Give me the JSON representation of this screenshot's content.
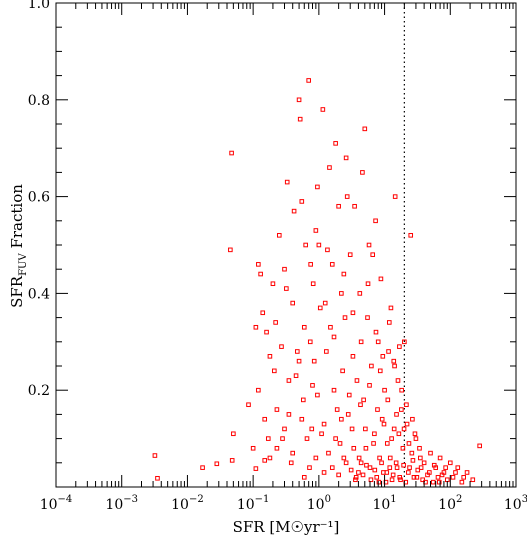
{
  "chart_data": {
    "type": "scatter",
    "title": "",
    "xlabel": "SFR [M☉yr⁻¹]",
    "ylabel": "SFRFUV Fraction",
    "xscale": "log",
    "xlim": [
      0.0001,
      1000
    ],
    "ylim": [
      0.0,
      1.0
    ],
    "x_ticks": [
      {
        "value": 0.0001,
        "base": "10",
        "exp": "−4"
      },
      {
        "value": 0.001,
        "base": "10",
        "exp": "−3"
      },
      {
        "value": 0.01,
        "base": "10",
        "exp": "−2"
      },
      {
        "value": 0.1,
        "base": "10",
        "exp": "−1"
      },
      {
        "value": 1,
        "base": "10",
        "exp": "0"
      },
      {
        "value": 10,
        "base": "10",
        "exp": "1"
      },
      {
        "value": 100,
        "base": "10",
        "exp": "2"
      },
      {
        "value": 1000,
        "base": "10",
        "exp": "3"
      }
    ],
    "y_ticks": [
      {
        "value": 0.2,
        "label": "0.2"
      },
      {
        "value": 0.4,
        "label": "0.4"
      },
      {
        "value": 0.6,
        "label": "0.6"
      },
      {
        "value": 0.8,
        "label": "0.8"
      },
      {
        "value": 1.0,
        "label": "1.0"
      }
    ],
    "reference_line": {
      "x": 20,
      "style": "dotted"
    },
    "grid": false,
    "legend": "none",
    "colors": {
      "points": "#ff0000",
      "axis": "#000000",
      "reference_line": "#000000"
    },
    "series": [
      {
        "marker": "open-square",
        "points": [
          [
            0.0032,
            0.065
          ],
          [
            0.0035,
            0.018
          ],
          [
            0.017,
            0.04
          ],
          [
            0.028,
            0.048
          ],
          [
            0.045,
            0.49
          ],
          [
            0.047,
            0.69
          ],
          [
            0.05,
            0.11
          ],
          [
            0.048,
            0.055
          ],
          [
            0.085,
            0.17
          ],
          [
            0.1,
            0.08
          ],
          [
            0.11,
            0.038
          ],
          [
            0.11,
            0.33
          ],
          [
            0.12,
            0.46
          ],
          [
            0.13,
            0.44
          ],
          [
            0.14,
            0.36
          ],
          [
            0.15,
            0.055
          ],
          [
            0.16,
            0.32
          ],
          [
            0.17,
            0.1
          ],
          [
            0.18,
            0.06
          ],
          [
            0.2,
            0.42
          ],
          [
            0.21,
            0.24
          ],
          [
            0.23,
            0.08
          ],
          [
            0.22,
            0.34
          ],
          [
            0.25,
            0.52
          ],
          [
            0.28,
            0.1
          ],
          [
            0.3,
            0.12
          ],
          [
            0.32,
            0.41
          ],
          [
            0.3,
            0.45
          ],
          [
            0.35,
            0.15
          ],
          [
            0.38,
            0.05
          ],
          [
            0.4,
            0.38
          ],
          [
            0.42,
            0.57
          ],
          [
            0.45,
            0.23
          ],
          [
            0.47,
            0.28
          ],
          [
            0.5,
            0.8
          ],
          [
            0.52,
            0.76
          ],
          [
            0.55,
            0.14
          ],
          [
            0.58,
            0.18
          ],
          [
            0.6,
            0.33
          ],
          [
            0.63,
            0.5
          ],
          [
            0.66,
            0.1
          ],
          [
            0.7,
            0.84
          ],
          [
            0.72,
            0.04
          ],
          [
            0.74,
            0.3
          ],
          [
            0.78,
            0.12
          ],
          [
            0.8,
            0.21
          ],
          [
            0.82,
            0.42
          ],
          [
            0.85,
            0.26
          ],
          [
            0.9,
            0.53
          ],
          [
            0.95,
            0.19
          ],
          [
            1.0,
            0.5
          ],
          [
            1.05,
            0.37
          ],
          [
            1.1,
            0.11
          ],
          [
            1.15,
            0.78
          ],
          [
            1.2,
            0.13
          ],
          [
            1.3,
            0.28
          ],
          [
            1.35,
            0.49
          ],
          [
            1.4,
            0.07
          ],
          [
            1.5,
            0.33
          ],
          [
            1.6,
            0.46
          ],
          [
            1.7,
            0.2
          ],
          [
            1.8,
            0.71
          ],
          [
            1.9,
            0.16
          ],
          [
            2.0,
            0.58
          ],
          [
            2.1,
            0.09
          ],
          [
            2.2,
            0.4
          ],
          [
            2.3,
            0.24
          ],
          [
            2.4,
            0.06
          ],
          [
            2.5,
            0.35
          ],
          [
            2.7,
            0.6
          ],
          [
            2.8,
            0.15
          ],
          [
            3.0,
            0.48
          ],
          [
            3.2,
            0.12
          ],
          [
            3.3,
            0.27
          ],
          [
            3.5,
            0.58
          ],
          [
            3.7,
            0.02
          ],
          [
            3.8,
            0.22
          ],
          [
            4.0,
            0.03
          ],
          [
            4.2,
            0.4
          ],
          [
            4.4,
            0.05
          ],
          [
            4.6,
            0.65
          ],
          [
            4.8,
            0.18
          ],
          [
            5.0,
            0.74
          ],
          [
            5.2,
            0.08
          ],
          [
            5.5,
            0.35
          ],
          [
            5.8,
            0.5
          ],
          [
            6.0,
            0.04
          ],
          [
            6.3,
            0.25
          ],
          [
            6.6,
            0.48
          ],
          [
            7.0,
            0.11
          ],
          [
            7.3,
            0.55
          ],
          [
            7.6,
            0.02
          ],
          [
            8.0,
            0.3
          ],
          [
            8.4,
            0.06
          ],
          [
            8.8,
            0.43
          ],
          [
            9.2,
            0.14
          ],
          [
            9.6,
            0.03
          ],
          [
            10,
            0.2
          ],
          [
            10.5,
            0.01
          ],
          [
            11,
            0.09
          ],
          [
            11.5,
            0.28
          ],
          [
            12,
            0.04
          ],
          [
            12.5,
            0.37
          ],
          [
            13,
            0.015
          ],
          [
            14,
            0.12
          ],
          [
            14.5,
            0.6
          ],
          [
            15,
            0.05
          ],
          [
            16,
            0.22
          ],
          [
            17,
            0.02
          ],
          [
            18,
            0.16
          ],
          [
            19,
            0.08
          ],
          [
            20,
            0.3
          ],
          [
            21,
            0.01
          ],
          [
            22,
            0.13
          ],
          [
            24,
            0.04
          ],
          [
            25,
            0.52
          ],
          [
            26,
            0.07
          ],
          [
            28,
            0.02
          ],
          [
            30,
            0.1
          ],
          [
            32,
            0.035
          ],
          [
            35,
            0.06
          ],
          [
            38,
            0.015
          ],
          [
            40,
            0.05
          ],
          [
            45,
            0.025
          ],
          [
            50,
            0.07
          ],
          [
            55,
            0.01
          ],
          [
            60,
            0.04
          ],
          [
            65,
            0.02
          ],
          [
            70,
            0.06
          ],
          [
            80,
            0.03
          ],
          [
            90,
            0.015
          ],
          [
            100,
            0.05
          ],
          [
            110,
            0.02
          ],
          [
            130,
            0.04
          ],
          [
            150,
            0.01
          ],
          [
            180,
            0.03
          ],
          [
            220,
            0.015
          ],
          [
            280,
            0.085
          ],
          [
            0.4,
            0.07
          ],
          [
            0.6,
            0.02
          ],
          [
            0.9,
            0.06
          ],
          [
            1.2,
            0.03
          ],
          [
            1.6,
            0.04
          ],
          [
            2.0,
            0.025
          ],
          [
            2.6,
            0.05
          ],
          [
            3.1,
            0.035
          ],
          [
            3.6,
            0.015
          ],
          [
            4.1,
            0.06
          ],
          [
            4.7,
            0.025
          ],
          [
            5.3,
            0.045
          ],
          [
            6.2,
            0.015
          ],
          [
            7.1,
            0.035
          ],
          [
            8.2,
            0.01
          ],
          [
            9.0,
            0.05
          ],
          [
            10.8,
            0.03
          ],
          [
            12.2,
            0.06
          ],
          [
            13.5,
            0.025
          ],
          [
            15.5,
            0.04
          ],
          [
            17.5,
            0.015
          ],
          [
            19.5,
            0.045
          ],
          [
            23,
            0.03
          ],
          [
            27,
            0.055
          ],
          [
            31,
            0.02
          ],
          [
            36,
            0.04
          ],
          [
            42,
            0.01
          ],
          [
            48,
            0.03
          ],
          [
            57,
            0.045
          ],
          [
            68,
            0.01
          ],
          [
            75,
            0.025
          ],
          [
            85,
            0.04
          ],
          [
            120,
            0.03
          ],
          [
            160,
            0.02
          ],
          [
            1.8,
            0.1
          ],
          [
            2.2,
            0.14
          ],
          [
            2.9,
            0.19
          ],
          [
            3.4,
            0.08
          ],
          [
            4.3,
            0.17
          ],
          [
            5.1,
            0.12
          ],
          [
            5.9,
            0.21
          ],
          [
            6.8,
            0.09
          ],
          [
            7.8,
            0.16
          ],
          [
            8.6,
            0.24
          ],
          [
            9.8,
            0.13
          ],
          [
            11.2,
            0.18
          ],
          [
            12.8,
            0.1
          ],
          [
            13.8,
            0.26
          ],
          [
            15.2,
            0.15
          ],
          [
            16.5,
            0.11
          ],
          [
            18.2,
            0.2
          ],
          [
            19.8,
            0.12
          ],
          [
            21.5,
            0.17
          ],
          [
            23.5,
            0.09
          ],
          [
            26.5,
            0.14
          ],
          [
            29,
            0.11
          ],
          [
            34,
            0.08
          ],
          [
            0.75,
            0.46
          ],
          [
            1.25,
            0.38
          ],
          [
            1.7,
            0.31
          ],
          [
            2.4,
            0.44
          ],
          [
            3.3,
            0.36
          ],
          [
            4.4,
            0.3
          ],
          [
            5.6,
            0.42
          ],
          [
            7.4,
            0.32
          ],
          [
            9.4,
            0.27
          ],
          [
            11.8,
            0.34
          ],
          [
            14.2,
            0.25
          ],
          [
            16.8,
            0.29
          ],
          [
            0.33,
            0.63
          ],
          [
            0.95,
            0.62
          ],
          [
            1.45,
            0.66
          ],
          [
            2.6,
            0.68
          ],
          [
            0.55,
            0.59
          ],
          [
            0.27,
            0.29
          ],
          [
            0.18,
            0.27
          ],
          [
            0.12,
            0.2
          ],
          [
            0.15,
            0.14
          ],
          [
            0.23,
            0.16
          ],
          [
            0.35,
            0.22
          ],
          [
            0.5,
            0.26
          ]
        ]
      }
    ]
  }
}
